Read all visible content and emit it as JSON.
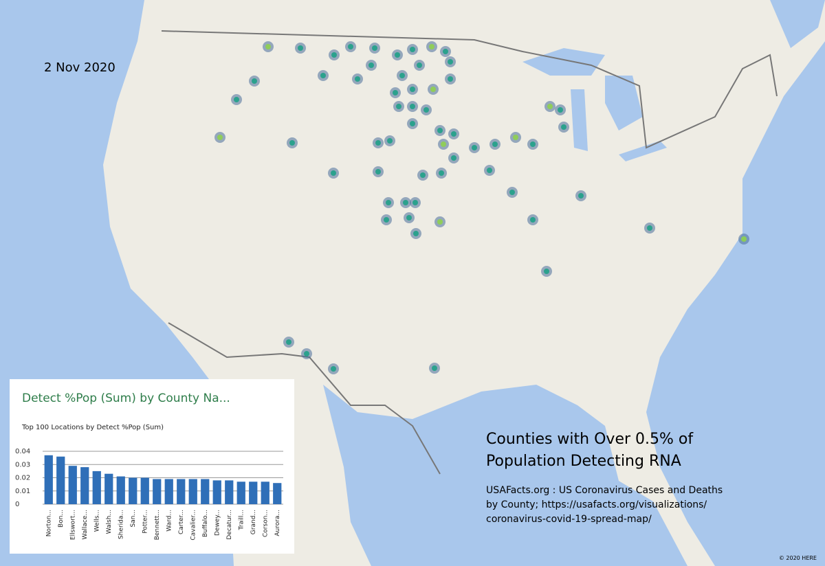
{
  "date": "2 Nov 2020",
  "annotation": {
    "title_lines": [
      "Counties with Over 0.5% of",
      "Population Detecting RNA"
    ],
    "source_lines": [
      "USAFacts.org : US Coronavirus Cases and Deaths",
      "by County; https://usafacts.org/visualizations/",
      "coronavirus-covid-19-spread-map/"
    ]
  },
  "copyright": "© 2020 HERE",
  "chart_data": {
    "type": "bar",
    "title": "Detect %Pop (Sum) by County Na...",
    "subtitle": "Top 100 Locations  by Detect %Pop (Sum)",
    "categories": [
      "Norton...",
      "Bon...",
      "Ellswort...",
      "Wallace...",
      "Wells...",
      "Walsh...",
      "Sherida...",
      "San...",
      "Potter...",
      "Bennett...",
      "Ward...",
      "Carter...",
      "Cavalier...",
      "Buffalo...",
      "Dewey...",
      "Decatur...",
      "Traill...",
      "Grand...",
      "Corson...",
      "Aurora..."
    ],
    "values": [
      0.037,
      0.036,
      0.029,
      0.028,
      0.025,
      0.023,
      0.021,
      0.02,
      0.02,
      0.019,
      0.019,
      0.019,
      0.019,
      0.019,
      0.018,
      0.018,
      0.017,
      0.017,
      0.017,
      0.016
    ],
    "color": "#2f6fb8",
    "ylim": [
      0,
      0.04
    ],
    "yticks": [
      0,
      0.01,
      0.02,
      0.03,
      0.04
    ],
    "grid": true
  }
}
